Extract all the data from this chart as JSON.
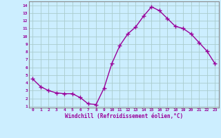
{
  "x": [
    0,
    1,
    2,
    3,
    4,
    5,
    6,
    7,
    8,
    9,
    10,
    11,
    12,
    13,
    14,
    15,
    16,
    17,
    18,
    19,
    20,
    21,
    22,
    23
  ],
  "y": [
    4.5,
    3.5,
    3.0,
    2.7,
    2.6,
    2.6,
    2.1,
    1.3,
    1.2,
    3.3,
    6.5,
    8.8,
    10.3,
    11.2,
    12.6,
    13.8,
    13.3,
    12.3,
    11.3,
    11.0,
    10.3,
    9.2,
    8.1,
    6.5
  ],
  "line_color": "#990099",
  "marker": "+",
  "marker_size": 4,
  "bg_color": "#cceeff",
  "grid_color": "#aacccc",
  "xlabel": "Windchill (Refroidissement éolien,°C)",
  "xlabel_color": "#990099",
  "tick_color": "#990099",
  "label_color": "#990099",
  "xlim": [
    -0.5,
    23.5
  ],
  "ylim": [
    0.8,
    14.5
  ],
  "yticks": [
    1,
    2,
    3,
    4,
    5,
    6,
    7,
    8,
    9,
    10,
    11,
    12,
    13,
    14
  ],
  "xticks": [
    0,
    1,
    2,
    3,
    4,
    5,
    6,
    7,
    8,
    9,
    10,
    11,
    12,
    13,
    14,
    15,
    16,
    17,
    18,
    19,
    20,
    21,
    22,
    23
  ],
  "line_width": 1.0,
  "spine_color": "#888888"
}
